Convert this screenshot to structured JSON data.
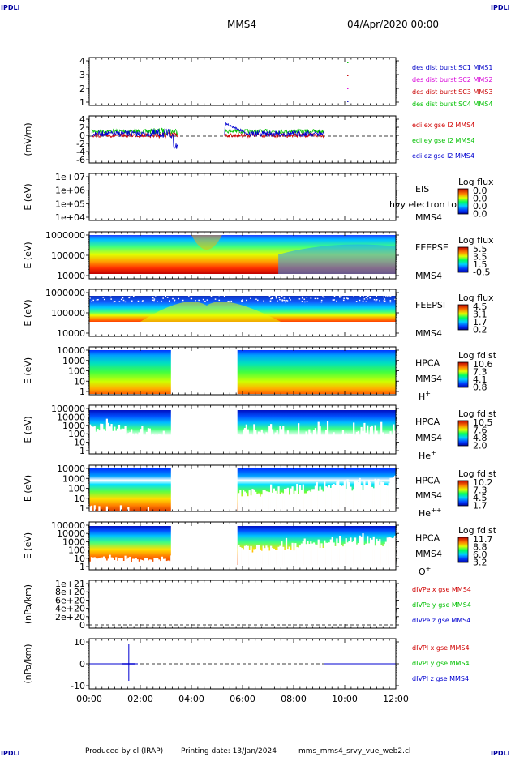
{
  "header": {
    "logo_left": "IPDLI",
    "logo_right": "IPDLI",
    "spacecraft": "MMS4",
    "datetime": "04/Apr/2020 00:00"
  },
  "footer": {
    "produced_by": "Produced by cl (IRAP)",
    "printing_date": "Printing date: 13/Jan/2024",
    "filename": "mms_mms4_srvy_vue_web2.cl",
    "logo_left": "IPDLI",
    "logo_right": "IPDLI"
  },
  "time_axis": {
    "range_hours": [
      0,
      12
    ],
    "ticks": [
      "00:00",
      "02:00",
      "04:00",
      "06:00",
      "08:00",
      "10:00",
      "12:00"
    ]
  },
  "colors": {
    "mms1": "#0000c8",
    "mms2": "#d800d8",
    "mms3": "#c80000",
    "mms4": "#00c000",
    "x": "#d00000",
    "y": "#00c000",
    "z": "#0000d0"
  },
  "chart_data": [
    {
      "id": "burst",
      "type": "scatter",
      "yticks": [
        "4",
        "3",
        "2",
        "1"
      ],
      "ylim": [
        0.5,
        4.5
      ],
      "legend": [
        {
          "text": "des dist burst SC1 MMS1",
          "color": "#0000c8"
        },
        {
          "text": "des dist burst SC2 MMS2",
          "color": "#d800d8"
        },
        {
          "text": "des dist burst SC3 MMS3",
          "color": "#c80000"
        },
        {
          "text": "des dist burst SC4 MMS4",
          "color": "#00c000"
        }
      ],
      "points": [
        {
          "t": 10.12,
          "y": 4,
          "color": "#00c000"
        },
        {
          "t": 10.12,
          "y": 3,
          "color": "#c80000"
        },
        {
          "t": 10.12,
          "y": 2,
          "color": "#d800d8"
        },
        {
          "t": 10.12,
          "y": 1,
          "color": "#0000c8"
        }
      ]
    },
    {
      "id": "edi",
      "type": "line",
      "ylabel": "(mV/m)",
      "yticks": [
        "4",
        "2",
        "0",
        "-2",
        "-4",
        "-6"
      ],
      "ylim": [
        -7,
        5
      ],
      "legend": [
        {
          "text": "edi ex gse l2 MMS4",
          "color": "#d00000"
        },
        {
          "text": "edi ey gse l2 MMS4",
          "color": "#00c000"
        },
        {
          "text": "edi ez gse l2 MMS4",
          "color": "#0000d0"
        }
      ]
    },
    {
      "id": "eis",
      "type": "heatmap",
      "ylabel": "E (eV)",
      "yticks": [
        "1e+07",
        "1e+06",
        "1e+05",
        "1e+04"
      ],
      "labels": [
        "EIS",
        "MMS4"
      ],
      "overlay_label": "hvy electron to",
      "colorbar": {
        "title": "Log flux",
        "ticks": [
          "0.0",
          "0.0",
          "0.0",
          "0.0"
        ]
      }
    },
    {
      "id": "feepse",
      "type": "heatmap",
      "ylabel": "E (eV)",
      "yticks": [
        "1000000",
        "100000",
        "10000"
      ],
      "labels": [
        "FEEPSE",
        "MMS4"
      ],
      "colorbar": {
        "title": "Log flux",
        "ticks": [
          "5.5",
          "3.5",
          "1.5",
          "-0.5"
        ]
      }
    },
    {
      "id": "feepsi",
      "type": "heatmap",
      "ylabel": "E (eV)",
      "yticks": [
        "1000000",
        "100000",
        "10000"
      ],
      "labels": [
        "FEEPSI",
        "MMS4"
      ],
      "colorbar": {
        "title": "Log flux",
        "ticks": [
          "4.5",
          "3.1",
          "1.7",
          "0.2"
        ]
      }
    },
    {
      "id": "hpca_h",
      "type": "heatmap",
      "ylabel": "E (eV)",
      "yticks": [
        "10000",
        "1000",
        "100",
        "10",
        "1"
      ],
      "labels": [
        "HPCA",
        "MMS4"
      ],
      "species": "H",
      "species_sup": "+",
      "gap_hours": [
        3.2,
        5.8
      ],
      "colorbar": {
        "title": "Log fdist",
        "ticks": [
          "10.6",
          "7.3",
          "4.1",
          "0.8"
        ]
      }
    },
    {
      "id": "hpca_he",
      "type": "heatmap",
      "ylabel": "E (eV)",
      "yticks": [
        "100000",
        "10000",
        "1000",
        "100",
        "10",
        "1"
      ],
      "labels": [
        "HPCA",
        "MMS4"
      ],
      "species": "He",
      "species_sup": "+",
      "gap_hours": [
        3.2,
        5.8
      ],
      "colorbar": {
        "title": "Log fdist",
        "ticks": [
          "10.5",
          "7.6",
          "4.8",
          "2.0"
        ]
      }
    },
    {
      "id": "hpca_hepp",
      "type": "heatmap",
      "ylabel": "E (eV)",
      "yticks": [
        "10000",
        "1000",
        "100",
        "10",
        "1"
      ],
      "labels": [
        "HPCA",
        "MMS4"
      ],
      "species": "He",
      "species_sup": "++",
      "gap_hours": [
        3.2,
        5.8
      ],
      "colorbar": {
        "title": "Log fdist",
        "ticks": [
          "10.2",
          "7.3",
          "4.5",
          "1.7"
        ]
      }
    },
    {
      "id": "hpca_o",
      "type": "heatmap",
      "ylabel": "E (eV)",
      "yticks": [
        "100000",
        "10000",
        "1000",
        "100",
        "10",
        "1"
      ],
      "labels": [
        "HPCA",
        "MMS4"
      ],
      "species": "O",
      "species_sup": "+",
      "gap_hours": [
        3.2,
        5.8
      ],
      "colorbar": {
        "title": "Log fdist",
        "ticks": [
          "11.7",
          "8.8",
          "6.0",
          "3.2"
        ]
      }
    },
    {
      "id": "divpe",
      "type": "line",
      "ylabel": "(nPa/km)",
      "yticks": [
        "1e+21",
        "8e+20",
        "6e+20",
        "4e+20",
        "2e+20",
        "0"
      ],
      "legend": [
        {
          "text": "dIVPe x gse MMS4",
          "color": "#d00000"
        },
        {
          "text": "dIVPe y gse MMS4",
          "color": "#00c000"
        },
        {
          "text": "dIVPe z gse MMS4",
          "color": "#0000d0"
        }
      ]
    },
    {
      "id": "divpi",
      "type": "line",
      "ylabel": "(nPa/km)",
      "yticks": [
        "10",
        "0",
        "-10"
      ],
      "ylim": [
        -15,
        15
      ],
      "legend": [
        {
          "text": "dIVPI x gse MMS4",
          "color": "#d00000"
        },
        {
          "text": "dIVPI y gse MMS4",
          "color": "#00c000"
        },
        {
          "text": "dIVPI z gse MMS4",
          "color": "#0000d0"
        }
      ]
    }
  ]
}
